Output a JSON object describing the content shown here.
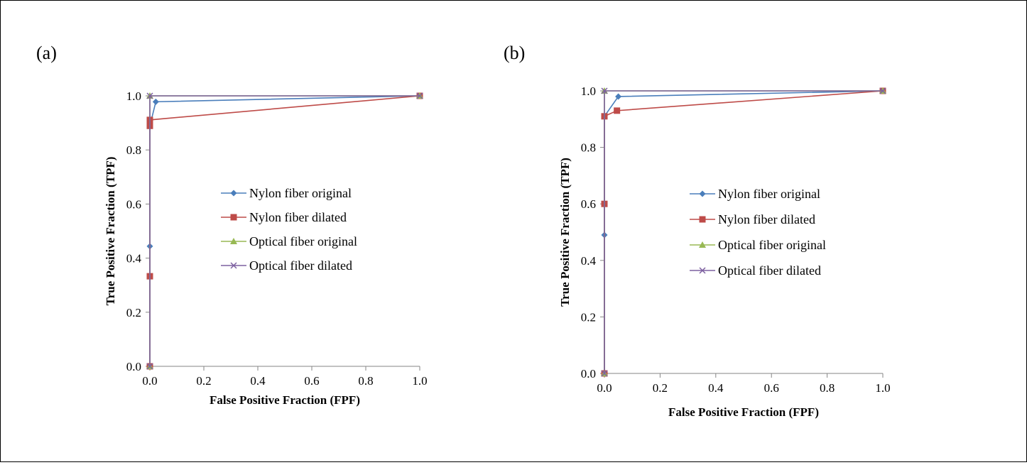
{
  "chart_data": [
    {
      "type": "line",
      "panel_label": "(a)",
      "xlabel": "False Positive Fraction (FPF)",
      "ylabel": "True Positive Fraction (TPF)",
      "xlim": [
        0,
        1
      ],
      "ylim": [
        0,
        1
      ],
      "x_ticks": [
        "0.0",
        "0.2",
        "0.4",
        "0.6",
        "0.8",
        "1.0"
      ],
      "y_ticks": [
        "0.0",
        "0.2",
        "0.4",
        "0.6",
        "0.8",
        "1.0"
      ],
      "grid": false,
      "legend_position": "center-right",
      "series": [
        {
          "name": "Nylon fiber original",
          "color": "#4a7ebb",
          "marker": "diamond",
          "points": [
            [
              0,
              0
            ],
            [
              0,
              0.444
            ],
            [
              0,
              0.889
            ],
            [
              0.022,
              0.978
            ],
            [
              1,
              1
            ]
          ]
        },
        {
          "name": "Nylon fiber dilated",
          "color": "#be4b48",
          "marker": "square",
          "points": [
            [
              0,
              0
            ],
            [
              0,
              0.333
            ],
            [
              0,
              0.889
            ],
            [
              0,
              0.911
            ],
            [
              1,
              1
            ]
          ]
        },
        {
          "name": "Optical fiber original",
          "color": "#98b954",
          "marker": "triangle",
          "points": [
            [
              0,
              0
            ],
            [
              0,
              1
            ],
            [
              1,
              1
            ]
          ]
        },
        {
          "name": "Optical fiber dilated",
          "color": "#7d60a0",
          "marker": "x",
          "points": [
            [
              0,
              0
            ],
            [
              0,
              1
            ],
            [
              1,
              1
            ]
          ]
        }
      ]
    },
    {
      "type": "line",
      "panel_label": "(b)",
      "xlabel": "False Positive Fraction (FPF)",
      "ylabel": "True Positive Fraction (TPF)",
      "xlim": [
        0,
        1
      ],
      "ylim": [
        0,
        1
      ],
      "x_ticks": [
        "0.0",
        "0.2",
        "0.4",
        "0.6",
        "0.8",
        "1.0"
      ],
      "y_ticks": [
        "0.0",
        "0.2",
        "0.4",
        "0.6",
        "0.8",
        "1.0"
      ],
      "grid": false,
      "legend_position": "center-right",
      "series": [
        {
          "name": "Nylon fiber original",
          "color": "#4a7ebb",
          "marker": "diamond",
          "points": [
            [
              0,
              0
            ],
            [
              0,
              0.49
            ],
            [
              0,
              0.91
            ],
            [
              0.05,
              0.98
            ],
            [
              1,
              1
            ]
          ]
        },
        {
          "name": "Nylon fiber dilated",
          "color": "#be4b48",
          "marker": "square",
          "points": [
            [
              0,
              0
            ],
            [
              0,
              0.6
            ],
            [
              0,
              0.91
            ],
            [
              0.045,
              0.93
            ],
            [
              1,
              1
            ]
          ]
        },
        {
          "name": "Optical fiber original",
          "color": "#98b954",
          "marker": "triangle",
          "points": [
            [
              0,
              0
            ],
            [
              0,
              1
            ],
            [
              1,
              1
            ]
          ]
        },
        {
          "name": "Optical fiber dilated",
          "color": "#7d60a0",
          "marker": "x",
          "points": [
            [
              0,
              0
            ],
            [
              0,
              1
            ],
            [
              1,
              1
            ]
          ]
        }
      ]
    }
  ]
}
